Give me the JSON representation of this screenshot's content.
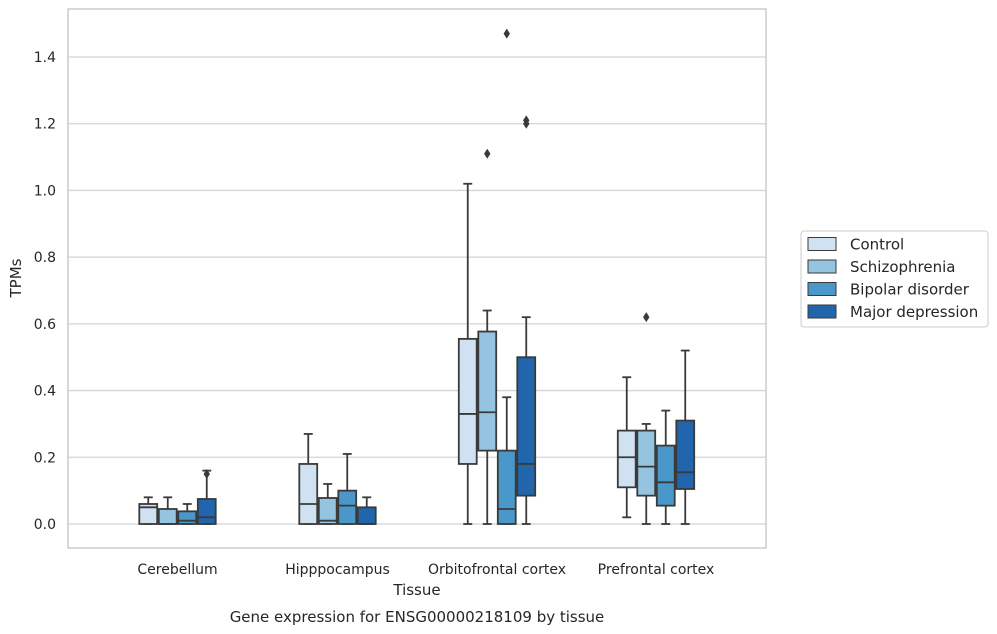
{
  "caption": "Gene expression for ENSG00000218109 by tissue",
  "chart_data": {
    "type": "box",
    "title": "",
    "xlabel": "Tissue",
    "ylabel": "TPMs",
    "ylim": [
      -0.07,
      1.55
    ],
    "yticks": [
      0.0,
      0.2,
      0.4,
      0.6,
      0.8,
      1.0,
      1.2,
      1.4
    ],
    "ytick_labels": [
      "0.0",
      "0.2",
      "0.4",
      "0.6",
      "0.8",
      "1.0",
      "1.2",
      "1.4"
    ],
    "grid": "horizontal",
    "legend_position": "right",
    "categories": [
      "Cerebellum",
      "Hipppocampus",
      "Orbitofrontal cortex",
      "Prefrontal cortex"
    ],
    "series": [
      {
        "name": "Control",
        "color": "#d0e1f2",
        "boxes": [
          {
            "whisker_low": 0.0,
            "q1": 0.0,
            "median": 0.05,
            "q3": 0.06,
            "whisker_high": 0.08,
            "outliers": []
          },
          {
            "whisker_low": 0.0,
            "q1": 0.0,
            "median": 0.06,
            "q3": 0.18,
            "whisker_high": 0.27,
            "outliers": []
          },
          {
            "whisker_low": 0.0,
            "q1": 0.18,
            "median": 0.33,
            "q3": 0.555,
            "whisker_high": 1.02,
            "outliers": []
          },
          {
            "whisker_low": 0.02,
            "q1": 0.11,
            "median": 0.2,
            "q3": 0.28,
            "whisker_high": 0.44,
            "outliers": []
          }
        ]
      },
      {
        "name": "Schizophrenia",
        "color": "#94c4df",
        "boxes": [
          {
            "whisker_low": 0.0,
            "q1": 0.0,
            "median": 0.0,
            "q3": 0.045,
            "whisker_high": 0.08,
            "outliers": []
          },
          {
            "whisker_low": 0.0,
            "q1": 0.0,
            "median": 0.01,
            "q3": 0.078,
            "whisker_high": 0.12,
            "outliers": []
          },
          {
            "whisker_low": 0.0,
            "q1": 0.22,
            "median": 0.335,
            "q3": 0.577,
            "whisker_high": 0.64,
            "outliers": [
              1.11
            ]
          },
          {
            "whisker_low": 0.0,
            "q1": 0.085,
            "median": 0.172,
            "q3": 0.28,
            "whisker_high": 0.3,
            "outliers": [
              0.62
            ]
          }
        ]
      },
      {
        "name": "Bipolar disorder",
        "color": "#4a98c9",
        "boxes": [
          {
            "whisker_low": 0.0,
            "q1": 0.0,
            "median": 0.01,
            "q3": 0.038,
            "whisker_high": 0.06,
            "outliers": []
          },
          {
            "whisker_low": 0.0,
            "q1": 0.0,
            "median": 0.055,
            "q3": 0.1,
            "whisker_high": 0.21,
            "outliers": []
          },
          {
            "whisker_low": 0.0,
            "q1": 0.0,
            "median": 0.045,
            "q3": 0.22,
            "whisker_high": 0.38,
            "outliers": [
              1.47
            ]
          },
          {
            "whisker_low": 0.0,
            "q1": 0.055,
            "median": 0.125,
            "q3": 0.235,
            "whisker_high": 0.34,
            "outliers": []
          }
        ]
      },
      {
        "name": "Major depression",
        "color": "#2166ac",
        "boxes": [
          {
            "whisker_low": 0.0,
            "q1": 0.0,
            "median": 0.02,
            "q3": 0.075,
            "whisker_high": 0.16,
            "outliers": [
              0.15
            ]
          },
          {
            "whisker_low": 0.0,
            "q1": 0.0,
            "median": 0.0,
            "q3": 0.05,
            "whisker_high": 0.08,
            "outliers": []
          },
          {
            "whisker_low": 0.0,
            "q1": 0.085,
            "median": 0.18,
            "q3": 0.5,
            "whisker_high": 0.62,
            "outliers": [
              1.2,
              1.21
            ]
          },
          {
            "whisker_low": 0.0,
            "q1": 0.105,
            "median": 0.155,
            "q3": 0.31,
            "whisker_high": 0.52,
            "outliers": []
          }
        ]
      }
    ]
  }
}
